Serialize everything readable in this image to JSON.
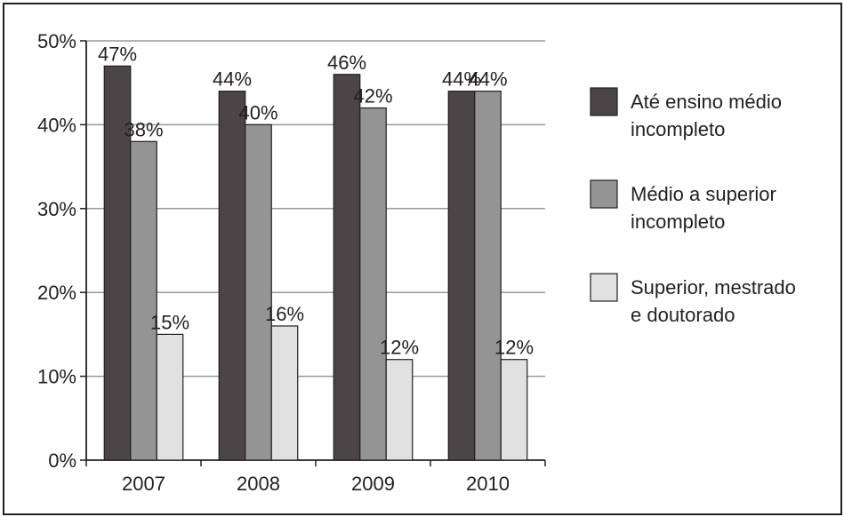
{
  "chart_data": {
    "type": "bar",
    "categories": [
      "2007",
      "2008",
      "2009",
      "2010"
    ],
    "series": [
      {
        "name": "Até ensino médio incompleto",
        "legend_lines": [
          "Até ensino médio",
          "incompleto"
        ],
        "values": [
          47,
          44,
          46,
          44
        ],
        "labels": [
          "47%",
          "44%",
          "46%",
          "44%"
        ],
        "color": "#4a4546"
      },
      {
        "name": "Médio a superior incompleto",
        "legend_lines": [
          "Médio a superior",
          "incompleto"
        ],
        "values": [
          38,
          40,
          42,
          44
        ],
        "labels": [
          "38%",
          "40%",
          "42%",
          "44%"
        ],
        "color": "#949494"
      },
      {
        "name": "Superior, mestrado e doutorado",
        "legend_lines": [
          "Superior, mestrado",
          "e doutorado"
        ],
        "values": [
          15,
          16,
          12,
          12
        ],
        "labels": [
          "15%",
          "16%",
          "12%",
          "12%"
        ],
        "color": "#e1e1e1"
      }
    ],
    "yticks": [
      "0%",
      "10%",
      "20%",
      "30%",
      "40%",
      "50%"
    ],
    "ylim": [
      0,
      50
    ],
    "grid": true,
    "legend_position": "right",
    "title": "",
    "xlabel": "",
    "ylabel": ""
  }
}
